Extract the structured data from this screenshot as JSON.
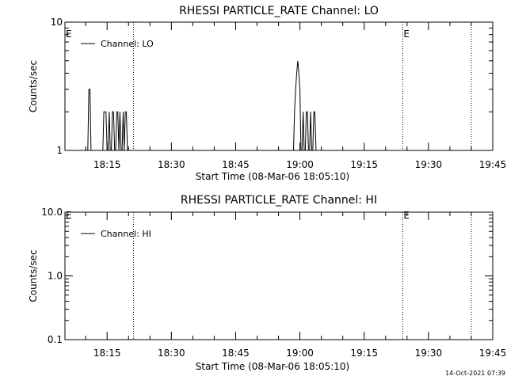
{
  "chart_data": [
    {
      "type": "line",
      "title": "RHESSI PARTICLE_RATE Channel: LO",
      "xlabel": "Start Time (08-Mar-06 18:05:10)",
      "ylabel": "Counts/sec",
      "yscale": "log",
      "ylim": [
        1,
        10
      ],
      "yticks": [
        1,
        10
      ],
      "ytick_labels": [
        "1",
        "10"
      ],
      "xlim": [
        "18:05:10",
        "19:45:00"
      ],
      "xticks": [
        "18:15",
        "18:30",
        "18:45",
        "19:00",
        "19:15",
        "19:30",
        "19:45"
      ],
      "legend": {
        "placement": "top-left"
      },
      "series": [
        {
          "name": "Channel: LO",
          "x": [
            "18:10:30",
            "18:10:45",
            "18:11:00",
            "18:11:15",
            "18:11:30",
            "18:14:00",
            "18:14:15",
            "18:14:45",
            "18:15:00",
            "18:15:15",
            "18:15:30",
            "18:15:45",
            "18:16:00",
            "18:16:15",
            "18:16:30",
            "18:16:45",
            "18:17:00",
            "18:17:15",
            "18:17:30",
            "18:17:45",
            "18:18:00",
            "18:18:15",
            "18:18:30",
            "18:18:45",
            "18:19:00",
            "18:19:15",
            "18:19:30",
            "18:19:45",
            "18:58:30",
            "18:58:45",
            "18:59:00",
            "18:59:15",
            "18:59:30",
            "18:59:45",
            "19:00:00",
            "19:00:15",
            "19:00:30",
            "19:00:45",
            "19:01:00",
            "19:01:15",
            "19:01:30",
            "19:01:45",
            "19:02:00",
            "19:02:15",
            "19:02:30",
            "19:02:45",
            "19:03:00",
            "19:03:15",
            "19:03:30",
            "19:03:45",
            "19:04:00",
            "19:04:15",
            "19:04:30",
            "19:04:45"
          ],
          "values": [
            1,
            3,
            3,
            1,
            1,
            1,
            2,
            2,
            1,
            1,
            2,
            1,
            1,
            2,
            2,
            1,
            1,
            2,
            2,
            1,
            2,
            1,
            1,
            2,
            1,
            2,
            2,
            1,
            1,
            2,
            3,
            4,
            5,
            4,
            3,
            1,
            1,
            2,
            1,
            1,
            2,
            2,
            1,
            1,
            2,
            1,
            1,
            2,
            2,
            1,
            1,
            1,
            1,
            1
          ]
        }
      ],
      "markers": [
        {
          "time": "18:21:10",
          "label": ""
        },
        {
          "time": "19:24:00",
          "label": "E"
        },
        {
          "time": "19:40:00",
          "label": ""
        },
        {
          "time": "18:05:10",
          "label": "E"
        }
      ]
    },
    {
      "type": "line",
      "title": "RHESSI PARTICLE_RATE Channel: HI",
      "xlabel": "Start Time (08-Mar-06 18:05:10)",
      "ylabel": "Counts/sec",
      "yscale": "log",
      "ylim": [
        0.1,
        10
      ],
      "yticks": [
        0.1,
        1,
        10
      ],
      "ytick_labels": [
        "0.1",
        "1.0",
        "10.0"
      ],
      "xlim": [
        "18:05:10",
        "19:45:00"
      ],
      "xticks": [
        "18:15",
        "18:30",
        "18:45",
        "19:00",
        "19:15",
        "19:30",
        "19:45"
      ],
      "legend": {
        "placement": "top-left"
      },
      "series": [
        {
          "name": "Channel: HI",
          "x": [],
          "values": []
        }
      ],
      "markers": [
        {
          "time": "18:21:10",
          "label": ""
        },
        {
          "time": "19:24:00",
          "label": "E"
        },
        {
          "time": "19:40:00",
          "label": ""
        },
        {
          "time": "18:05:10",
          "label": "E"
        }
      ]
    }
  ],
  "footer": {
    "timestamp": "14-Oct-2021 07:39"
  }
}
